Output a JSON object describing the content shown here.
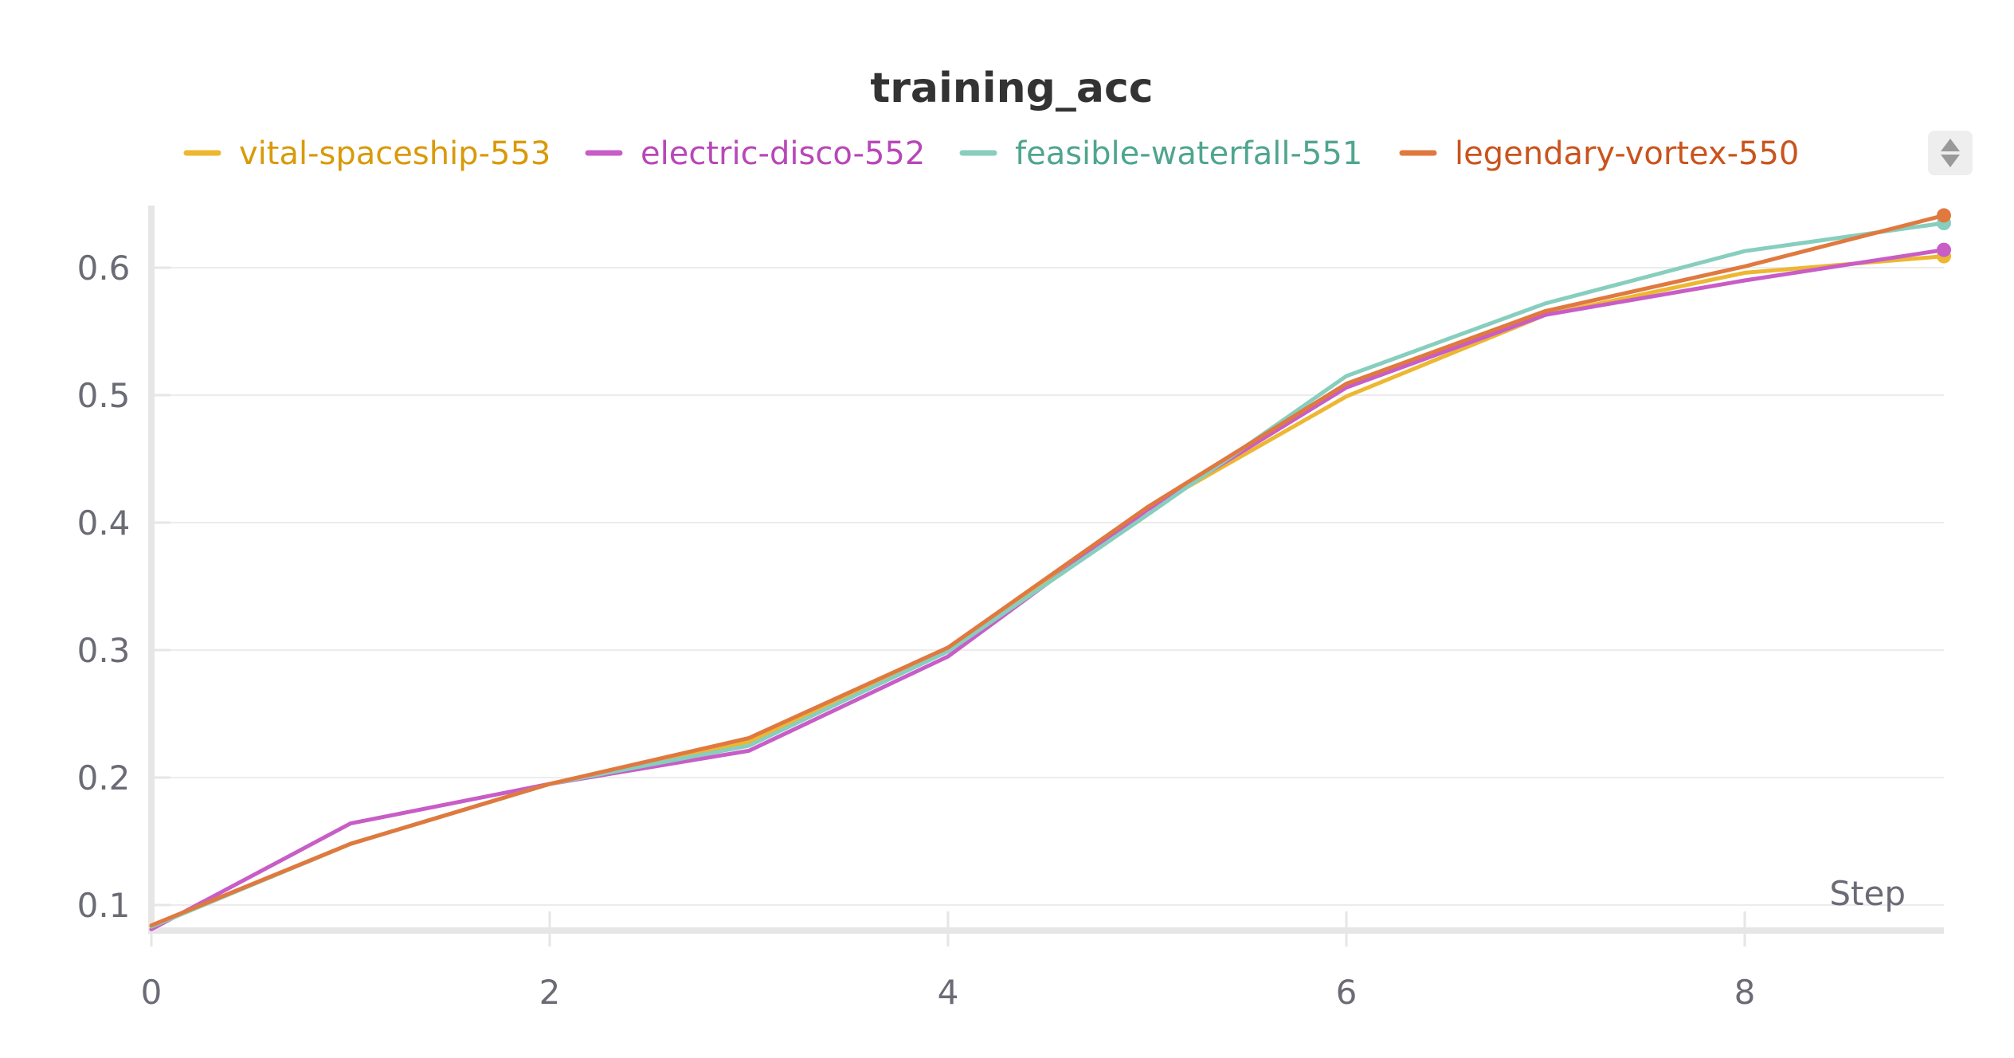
{
  "chart_data": {
    "type": "line",
    "title": "training_acc",
    "xlabel": "Step",
    "ylabel": "",
    "xlim": [
      0,
      9
    ],
    "ylim": [
      0.08,
      0.66
    ],
    "x_ticks": [
      "0",
      "2",
      "4",
      "6",
      "8"
    ],
    "y_ticks": [
      "0.1",
      "0.2",
      "0.3",
      "0.4",
      "0.5",
      "0.6"
    ],
    "grid": true,
    "legend_position": "top",
    "x": [
      0,
      1,
      2,
      3,
      4,
      5,
      6,
      7,
      8,
      9
    ],
    "series": [
      {
        "name": "vital-spaceship-553",
        "color": "#EDB732",
        "label_color": "#D99A0A",
        "values": [
          0.083,
          0.148,
          0.195,
          0.228,
          0.301,
          0.41,
          0.499,
          0.563,
          0.596,
          0.609
        ]
      },
      {
        "name": "electric-disco-552",
        "color": "#C85DC7",
        "label_color": "#B847B8",
        "values": [
          0.081,
          0.164,
          0.195,
          0.221,
          0.295,
          0.41,
          0.506,
          0.563,
          0.59,
          0.614
        ]
      },
      {
        "name": "feasible-waterfall-551",
        "color": "#87CEBE",
        "label_color": "#4FA58F",
        "values": [
          0.083,
          0.148,
          0.195,
          0.225,
          0.299,
          0.406,
          0.515,
          0.572,
          0.613,
          0.635
        ]
      },
      {
        "name": "legendary-vortex-550",
        "color": "#E0793F",
        "label_color": "#C9541D",
        "values": [
          0.084,
          0.148,
          0.195,
          0.231,
          0.302,
          0.412,
          0.509,
          0.566,
          0.601,
          0.641
        ]
      }
    ]
  }
}
